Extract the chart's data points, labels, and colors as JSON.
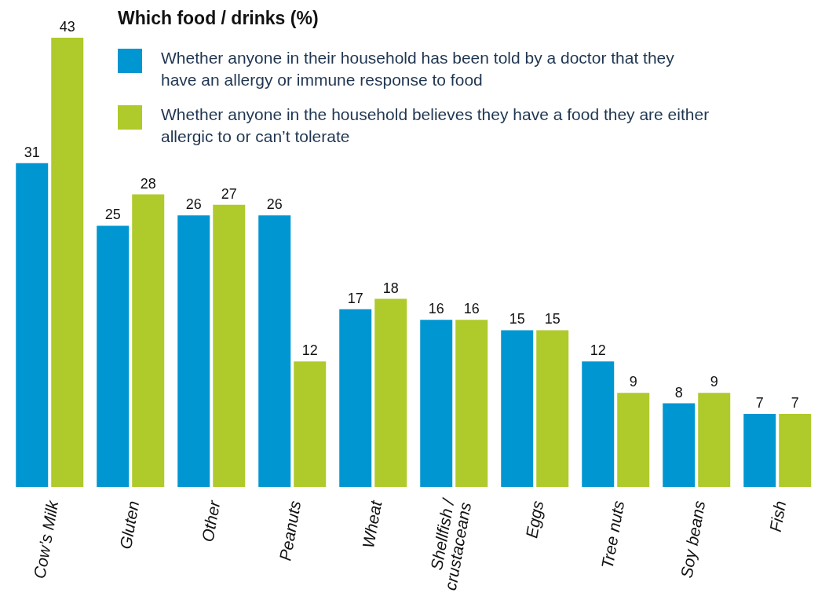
{
  "chart_data": {
    "type": "bar",
    "title": "Which food / drinks (%)",
    "categories": [
      "Cow’s Milk",
      "Gluten",
      "Other",
      "Peanuts",
      "Wheat",
      "Shellfish / crustaceans",
      "Eggs",
      "Tree nuts",
      "Soy beans",
      "Fish"
    ],
    "series": [
      {
        "name": "Whether anyone in their household has been told by a doctor that they have an allergy or immune response to food",
        "color": "#0096d1",
        "values": [
          31,
          25,
          26,
          26,
          17,
          16,
          15,
          12,
          8,
          7
        ]
      },
      {
        "name": "Whether anyone in the household believes they have a food they are either allergic to or can’t tolerate",
        "color": "#afca2b",
        "values": [
          43,
          28,
          27,
          12,
          18,
          16,
          15,
          9,
          9,
          7
        ]
      }
    ],
    "data_labels": true,
    "legend": "top",
    "grid": false
  }
}
